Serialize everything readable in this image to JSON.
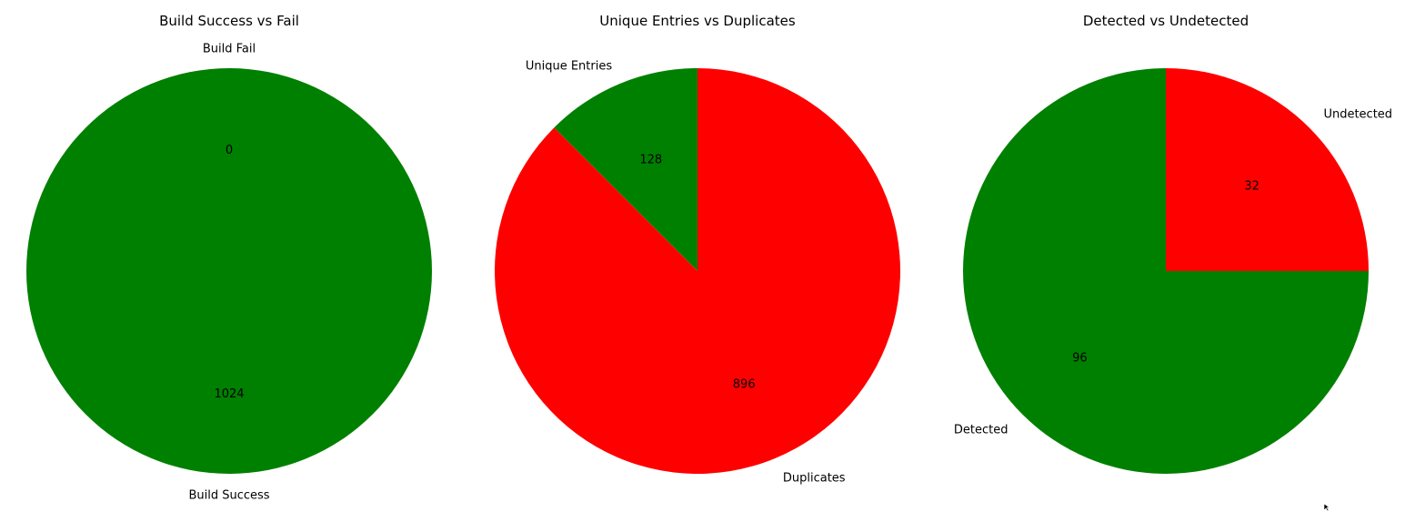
{
  "chart_data": [
    {
      "type": "pie",
      "title": "Build Success vs Fail",
      "categories": [
        "Build Success",
        "Build Fail"
      ],
      "values": [
        1024,
        0
      ],
      "colors": [
        "#008000",
        "#ff0000"
      ],
      "start_angle": 90,
      "direction": "counterclockwise",
      "value_labels": [
        "1024",
        "0"
      ]
    },
    {
      "type": "pie",
      "title": "Unique Entries vs Duplicates",
      "categories": [
        "Unique Entries",
        "Duplicates"
      ],
      "values": [
        128,
        896
      ],
      "colors": [
        "#008000",
        "#ff0000"
      ],
      "start_angle": 90,
      "direction": "counterclockwise",
      "value_labels": [
        "128",
        "896"
      ]
    },
    {
      "type": "pie",
      "title": "Detected vs Undetected",
      "categories": [
        "Detected",
        "Undetected"
      ],
      "values": [
        96,
        32
      ],
      "colors": [
        "#008000",
        "#ff0000"
      ],
      "start_angle": 90,
      "direction": "counterclockwise",
      "value_labels": [
        "96",
        "32"
      ]
    }
  ]
}
